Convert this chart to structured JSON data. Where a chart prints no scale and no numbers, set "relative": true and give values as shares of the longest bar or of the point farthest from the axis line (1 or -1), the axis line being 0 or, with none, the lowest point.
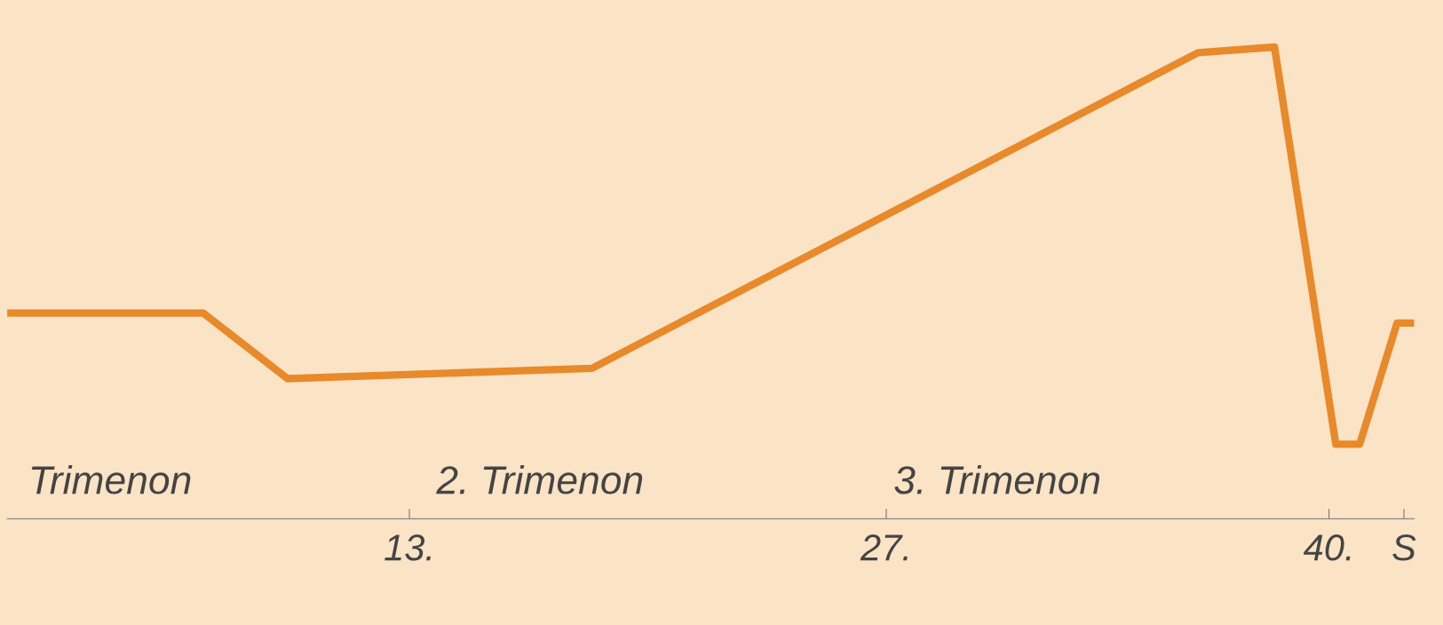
{
  "chart_data": {
    "type": "line",
    "relative": true,
    "x": [
      1.19,
      6.95,
      9.42,
      18.36,
      36.15,
      38.4,
      40.2,
      40.9,
      42.0,
      42.5
    ],
    "series": [
      {
        "color": "#e8892a",
        "values": [
          0.436,
          0.436,
          0.297,
          0.319,
          0.988,
          1,
          0.158,
          0.158,
          0.415,
          0.415
        ]
      }
    ],
    "xlim": [
      1.19,
      42.5
    ],
    "xticks": [
      {
        "value": 13,
        "label": "13."
      },
      {
        "value": 27,
        "label": "27."
      },
      {
        "value": 40,
        "label": "40."
      },
      {
        "value": 42.2,
        "label": "S"
      }
    ],
    "annotations": [
      "Trimenon",
      "2. Trimenon",
      "3. Trimenon"
    ],
    "grid": false,
    "legend": false,
    "marker": "none",
    "line_style": "solid"
  }
}
